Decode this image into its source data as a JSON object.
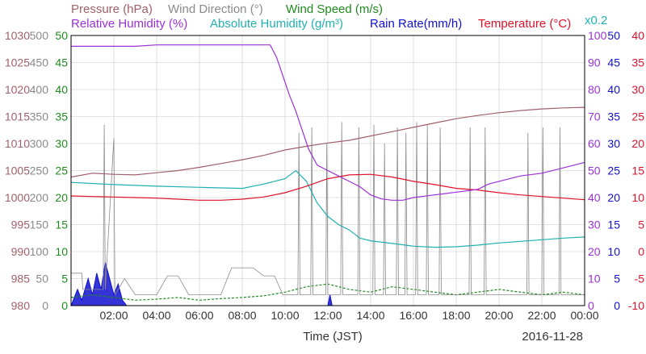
{
  "chart_data": {
    "type": "line",
    "date_label": "2016-11-28",
    "xlabel": "Time (JST)",
    "x_ticks": [
      "02:00",
      "04:00",
      "06:00",
      "08:00",
      "10:00",
      "12:00",
      "14:00",
      "16:00",
      "18:00",
      "20:00",
      "22:00",
      "00:00"
    ],
    "x_range_hours": [
      0,
      24
    ],
    "grid": true,
    "legend": {
      "row1": [
        {
          "id": "pressure",
          "text": "Pressure (hPa)",
          "color": "#a0606a"
        },
        {
          "id": "wind_direction",
          "text": "Wind Direction (°)",
          "color": "#8a8a8a"
        },
        {
          "id": "wind_speed",
          "text": "Wind Speed (m/s)",
          "color": "#1f8a1f"
        }
      ],
      "row2": [
        {
          "id": "relative_humidity",
          "text": "Relative Humidity (%)",
          "color": "#9b30d8"
        },
        {
          "id": "absolute_humidity",
          "text": "Absolute Humidity (g/m³)",
          "color": "#20b0b0"
        },
        {
          "id": "rain_rate",
          "text": "Rain Rate(mm/h)",
          "color": "#1010d0"
        },
        {
          "id": "temperature",
          "text": "Temperature (°C)",
          "color": "#e0102a"
        },
        {
          "id": "scale_note",
          "text": "x0.2",
          "color": "#20b0b0"
        }
      ]
    },
    "axes": {
      "pressure": {
        "color": "#a0606a",
        "ticks": [
          "1030",
          "1025",
          "1020",
          "1015",
          "1010",
          "1005",
          "1000",
          "995",
          "990",
          "985",
          "980"
        ],
        "ylim": [
          980,
          1030
        ]
      },
      "wind_direction": {
        "color": "#8a8a8a",
        "ticks": [
          "500",
          "450",
          "400",
          "350",
          "300",
          "250",
          "200",
          "150",
          "100",
          "50",
          "0"
        ],
        "ylim": [
          0,
          500
        ]
      },
      "wind_speed": {
        "color": "#1f8a1f",
        "ticks": [
          "50",
          "45",
          "40",
          "35",
          "30",
          "25",
          "20",
          "15",
          "10",
          "5",
          "0"
        ],
        "ylim": [
          0,
          50
        ]
      },
      "relative_humidity": {
        "color": "#9b30d8",
        "ticks": [
          "100",
          "90",
          "80",
          "70",
          "60",
          "50",
          "40",
          "30",
          "20",
          "10",
          "0"
        ],
        "ylim": [
          0,
          100
        ]
      },
      "rain_rate": {
        "color": "#1010d0",
        "ticks": [
          "50",
          "45",
          "40",
          "35",
          "30",
          "25",
          "20",
          "15",
          "10",
          "5",
          "0"
        ],
        "ylim": [
          0,
          50
        ]
      },
      "temperature": {
        "color": "#e0102a",
        "ticks": [
          "40",
          "35",
          "30",
          "25",
          "20",
          "15",
          "10",
          "5",
          "0",
          "-5",
          "-10"
        ],
        "ylim": [
          -10,
          40
        ]
      }
    },
    "series": [
      {
        "name": "Pressure (hPa)",
        "color": "#a0606a",
        "axis": "pressure",
        "points": [
          [
            0,
            1003.8
          ],
          [
            1,
            1004.5
          ],
          [
            2,
            1004.3
          ],
          [
            3,
            1004.2
          ],
          [
            4,
            1004.6
          ],
          [
            5,
            1005.0
          ],
          [
            6,
            1005.6
          ],
          [
            7,
            1006.3
          ],
          [
            8,
            1007.0
          ],
          [
            9,
            1007.8
          ],
          [
            10,
            1008.8
          ],
          [
            11,
            1009.5
          ],
          [
            12,
            1010.1
          ],
          [
            13,
            1010.6
          ],
          [
            14,
            1011.4
          ],
          [
            15,
            1012.2
          ],
          [
            16,
            1013.0
          ],
          [
            17,
            1013.8
          ],
          [
            18,
            1014.6
          ],
          [
            19,
            1015.2
          ],
          [
            20,
            1015.7
          ],
          [
            21,
            1016.1
          ],
          [
            22,
            1016.4
          ],
          [
            23,
            1016.6
          ],
          [
            24,
            1016.7
          ]
        ]
      },
      {
        "name": "Relative Humidity (%)",
        "color": "#9b30d8",
        "axis": "relative_humidity",
        "points": [
          [
            0,
            96
          ],
          [
            2,
            96
          ],
          [
            3,
            96
          ],
          [
            4,
            96.5
          ],
          [
            6,
            96.5
          ],
          [
            8,
            96.5
          ],
          [
            9.3,
            96.5
          ],
          [
            9.6,
            92
          ],
          [
            9.9,
            85
          ],
          [
            10.2,
            78
          ],
          [
            10.5,
            72
          ],
          [
            10.8,
            65
          ],
          [
            11.1,
            58
          ],
          [
            11.5,
            52
          ],
          [
            12.0,
            50
          ],
          [
            12.5,
            48
          ],
          [
            13.0,
            46
          ],
          [
            13.5,
            44
          ],
          [
            14.0,
            41
          ],
          [
            14.5,
            39.5
          ],
          [
            15.0,
            39
          ],
          [
            15.5,
            39
          ],
          [
            16.0,
            40
          ],
          [
            16.5,
            40.5
          ],
          [
            17.0,
            41
          ],
          [
            17.5,
            41.5
          ],
          [
            18.0,
            42
          ],
          [
            18.5,
            42.5
          ],
          [
            19.0,
            43
          ],
          [
            19.5,
            45
          ],
          [
            20.0,
            46
          ],
          [
            20.5,
            47
          ],
          [
            21.0,
            48
          ],
          [
            22.0,
            49
          ],
          [
            23.0,
            51
          ],
          [
            24.0,
            53
          ]
        ]
      },
      {
        "name": "Absolute Humidity (g/m³)",
        "color": "#20b0b0",
        "axis": "wind_speed",
        "points": [
          [
            0,
            22.8
          ],
          [
            2,
            22.4
          ],
          [
            4,
            22.1
          ],
          [
            6,
            21.9
          ],
          [
            8,
            21.7
          ],
          [
            9,
            22.5
          ],
          [
            10.0,
            23.5
          ],
          [
            10.5,
            25.0
          ],
          [
            11,
            23.0
          ],
          [
            11.5,
            19.0
          ],
          [
            12,
            16.5
          ],
          [
            12.5,
            15.0
          ],
          [
            13,
            14.0
          ],
          [
            13.5,
            12.5
          ],
          [
            14,
            12.0
          ],
          [
            15,
            11.5
          ],
          [
            16,
            11.0
          ],
          [
            17,
            10.8
          ],
          [
            18,
            10.9
          ],
          [
            19,
            11.2
          ],
          [
            20,
            11.6
          ],
          [
            21,
            11.9
          ],
          [
            22,
            12.2
          ],
          [
            23,
            12.5
          ],
          [
            24,
            12.7
          ]
        ]
      },
      {
        "name": "Temperature (°C)",
        "color": "#e0102a",
        "axis": "temperature",
        "points": [
          [
            0,
            10.3
          ],
          [
            1,
            10.2
          ],
          [
            2,
            10.1
          ],
          [
            3,
            10.0
          ],
          [
            4,
            9.9
          ],
          [
            5,
            9.7
          ],
          [
            6,
            9.5
          ],
          [
            7,
            9.5
          ],
          [
            8,
            9.7
          ],
          [
            9,
            10.1
          ],
          [
            10,
            10.9
          ],
          [
            11,
            12.1
          ],
          [
            12,
            13.5
          ],
          [
            13,
            14.2
          ],
          [
            14,
            14.3
          ],
          [
            15,
            13.8
          ],
          [
            16,
            13.0
          ],
          [
            17,
            12.4
          ],
          [
            18,
            11.7
          ],
          [
            19,
            11.4
          ],
          [
            20,
            10.9
          ],
          [
            21,
            10.5
          ],
          [
            22,
            10.2
          ],
          [
            23,
            9.9
          ],
          [
            24,
            9.6
          ]
        ]
      },
      {
        "name": "Wind Direction (°)",
        "color": "#8a8a8a",
        "axis": "wind_direction",
        "points": [
          [
            0,
            60
          ],
          [
            0.5,
            60
          ],
          [
            0.55,
            30
          ],
          [
            1.5,
            30
          ],
          [
            1.55,
            335
          ],
          [
            1.6,
            30
          ],
          [
            2.0,
            310
          ],
          [
            2.05,
            20
          ],
          [
            2.5,
            50
          ],
          [
            3.0,
            20
          ],
          [
            4.0,
            20
          ],
          [
            4.5,
            55
          ],
          [
            5.0,
            55
          ],
          [
            5.5,
            20
          ],
          [
            7.0,
            20
          ],
          [
            7.5,
            70
          ],
          [
            8.5,
            70
          ],
          [
            9.0,
            55
          ],
          [
            9.5,
            55
          ],
          [
            9.9,
            20
          ],
          [
            10.6,
            20
          ],
          [
            10.65,
            320
          ],
          [
            10.7,
            20
          ],
          [
            11.2,
            20
          ],
          [
            11.25,
            330
          ],
          [
            11.3,
            20
          ],
          [
            11.9,
            20
          ],
          [
            11.95,
            300
          ],
          [
            12.0,
            20
          ],
          [
            12.6,
            20
          ],
          [
            12.65,
            340
          ],
          [
            12.7,
            20
          ],
          [
            13.4,
            20
          ],
          [
            13.45,
            330
          ],
          [
            13.5,
            20
          ],
          [
            14.1,
            20
          ],
          [
            14.15,
            335
          ],
          [
            14.2,
            20
          ],
          [
            14.6,
            20
          ],
          [
            14.65,
            300
          ],
          [
            14.7,
            20
          ],
          [
            15.2,
            20
          ],
          [
            15.25,
            330
          ],
          [
            15.3,
            20
          ],
          [
            15.6,
            20
          ],
          [
            15.65,
            320
          ],
          [
            15.7,
            20
          ],
          [
            16.1,
            20
          ],
          [
            16.15,
            340
          ],
          [
            16.2,
            20
          ],
          [
            16.6,
            20
          ],
          [
            16.65,
            335
          ],
          [
            16.7,
            20
          ],
          [
            17.2,
            20
          ],
          [
            17.25,
            330
          ],
          [
            17.3,
            20
          ],
          [
            18.6,
            20
          ],
          [
            18.65,
            330
          ],
          [
            18.7,
            20
          ],
          [
            19.3,
            20
          ],
          [
            19.35,
            330
          ],
          [
            19.4,
            20
          ],
          [
            21.3,
            20
          ],
          [
            21.35,
            320
          ],
          [
            21.4,
            20
          ],
          [
            22.0,
            20
          ],
          [
            22.05,
            330
          ],
          [
            22.1,
            20
          ],
          [
            22.8,
            20
          ],
          [
            22.85,
            330
          ],
          [
            22.9,
            20
          ],
          [
            24,
            20
          ]
        ]
      },
      {
        "name": "Wind Speed (m/s)",
        "color": "#1f8a1f",
        "axis": "wind_speed",
        "points": [
          [
            0,
            1.5
          ],
          [
            1,
            2.0
          ],
          [
            2,
            1.5
          ],
          [
            3,
            1.0
          ],
          [
            4,
            1.2
          ],
          [
            5,
            1.5
          ],
          [
            6,
            1.0
          ],
          [
            7,
            1.3
          ],
          [
            8,
            1.5
          ],
          [
            9,
            1.8
          ],
          [
            10,
            2.5
          ],
          [
            11,
            3.5
          ],
          [
            12,
            4.0
          ],
          [
            13,
            3.0
          ],
          [
            14,
            2.5
          ],
          [
            15,
            3.5
          ],
          [
            16,
            3.0
          ],
          [
            17,
            2.5
          ],
          [
            18,
            2.0
          ],
          [
            19,
            2.5
          ],
          [
            20,
            3.0
          ],
          [
            21,
            2.5
          ],
          [
            22,
            2.0
          ],
          [
            23,
            2.5
          ],
          [
            24,
            2.0
          ]
        ]
      },
      {
        "name": "Rain Rate(mm/h)",
        "color": "#1010d0",
        "axis": "rain_rate",
        "points": [
          [
            0,
            0
          ],
          [
            0.3,
            3
          ],
          [
            0.5,
            1
          ],
          [
            0.8,
            5
          ],
          [
            1.0,
            2
          ],
          [
            1.2,
            6
          ],
          [
            1.4,
            3
          ],
          [
            1.6,
            8
          ],
          [
            1.8,
            5
          ],
          [
            2.0,
            2
          ],
          [
            2.2,
            4
          ],
          [
            2.4,
            1
          ],
          [
            2.6,
            0
          ],
          [
            12.0,
            0
          ],
          [
            12.1,
            2
          ],
          [
            12.2,
            0
          ],
          [
            24,
            0
          ]
        ]
      }
    ]
  }
}
